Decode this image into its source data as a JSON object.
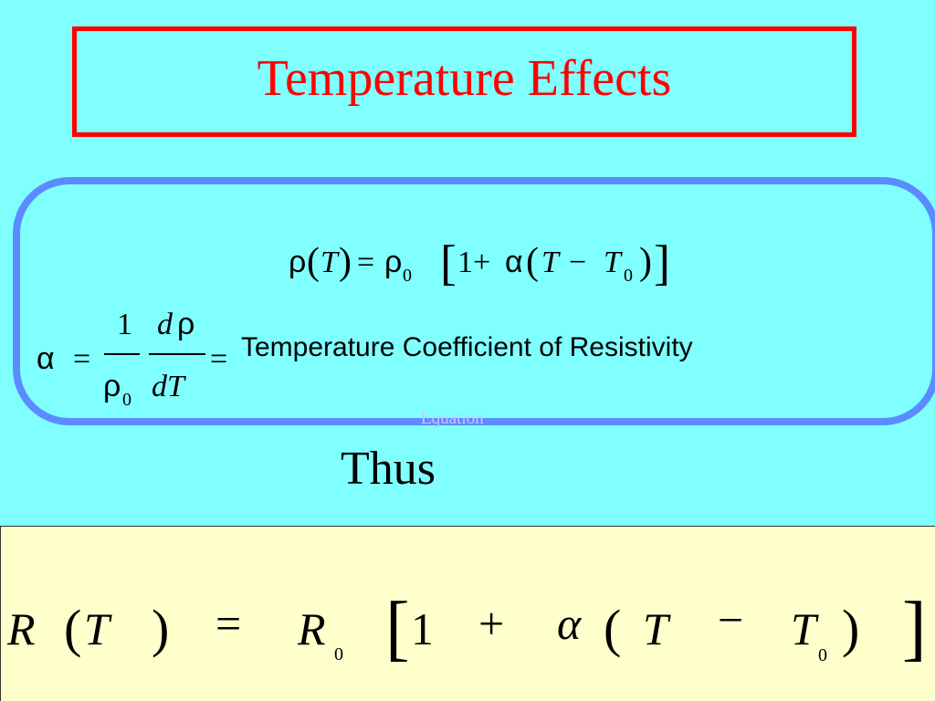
{
  "slide": {
    "title": "Temperature Effects",
    "accent_color": "#ff0000",
    "background_color": "#80ffff",
    "frame_color": "#5b8bff",
    "panel_color": "#ffffcc"
  },
  "equation_box": {
    "resistivity_equation": {
      "rho": "ρ",
      "open_paren": "(",
      "T": "T",
      "close_paren": ")",
      "equals": "=",
      "rho0_base": "ρ",
      "rho0_sub": "0",
      "open_bracket": "[",
      "one": "1",
      "plus": "+",
      "alpha": "α",
      "open_paren2": "(",
      "T2": "T",
      "minus": "−",
      "T0_base": "T",
      "T0_sub": "0",
      "close_paren2": ")",
      "close_bracket": "]"
    },
    "alpha_definition": {
      "alpha": "α",
      "equals": "=",
      "frac1_num": "1",
      "frac1_den_base": "ρ",
      "frac1_den_sub": "0",
      "frac2_num_d": "d",
      "frac2_num_rho": "ρ",
      "frac2_den": "dT",
      "equals2": "=",
      "label": "Temperature Coefficient of Resistivity"
    },
    "ghost_text": "Equation"
  },
  "connector": "Thus",
  "result_equation": {
    "R": "R",
    "open_paren": "(",
    "T": "T",
    "close_paren": ")",
    "equals": "=",
    "R0_base": "R",
    "R0_sub": "0",
    "open_bracket": "[",
    "one": "1",
    "plus": "+",
    "alpha": "α",
    "open_paren2": "(",
    "T2": "T",
    "minus": "−",
    "T0_base": "T",
    "T0_sub": "0",
    "close_paren2": ")",
    "close_bracket": "]"
  }
}
